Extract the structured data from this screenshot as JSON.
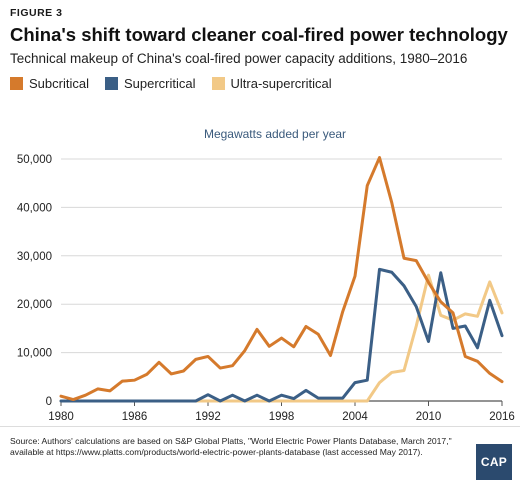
{
  "figure_label": "FIGURE 3",
  "title": "China's shift toward cleaner coal-fired power technology",
  "subtitle": "Technical makeup of China's coal-fired power capacity additions, 1980–2016",
  "unit_label": "Megawatts added per year",
  "source": "Source: Authors' calculations are based on S&P Global Platts, \"World Electric Power Plants Database, March 2017,\" available at https://www.platts.com/products/world-electric-power-plants-database (last accessed May 2017).",
  "logo_text": "CAP",
  "colors": {
    "subcritical": "#d57a2c",
    "supercritical": "#3b5f86",
    "ultra_supercritical": "#f2c987",
    "grid": "#d8d8d8",
    "axis": "#555555"
  },
  "chart_data": {
    "type": "line",
    "title": "China's shift toward cleaner coal-fired power technology",
    "subtitle": "Technical makeup of China's coal-fired power capacity additions, 1980–2016",
    "ylabel": "Megawatts added per year",
    "xlabel": "",
    "xlim": [
      1980,
      2016
    ],
    "ylim": [
      0,
      50000
    ],
    "x_ticks": [
      1980,
      1986,
      1992,
      1998,
      2004,
      2010,
      2016
    ],
    "y_ticks": [
      0,
      10000,
      20000,
      30000,
      40000,
      50000
    ],
    "y_tick_labels": [
      "0",
      "10,000",
      "20,000",
      "30,000",
      "40,000",
      "50,000"
    ],
    "grid": true,
    "legend_position": "top-left",
    "x": [
      1980,
      1981,
      1982,
      1983,
      1984,
      1985,
      1986,
      1987,
      1988,
      1989,
      1990,
      1991,
      1992,
      1993,
      1994,
      1995,
      1996,
      1997,
      1998,
      1999,
      2000,
      2001,
      2002,
      2003,
      2004,
      2005,
      2006,
      2007,
      2008,
      2009,
      2010,
      2011,
      2012,
      2013,
      2014,
      2015,
      2016
    ],
    "series": [
      {
        "name": "Subcritical",
        "color": "#d57a2c",
        "values": [
          1000,
          300,
          1200,
          2500,
          2100,
          4100,
          4300,
          5500,
          8000,
          5600,
          6200,
          8600,
          9200,
          6800,
          7300,
          10400,
          14800,
          11300,
          13000,
          11200,
          15400,
          13800,
          9400,
          18500,
          25800,
          44500,
          50300,
          41000,
          29500,
          29000,
          24500,
          20500,
          18200,
          9200,
          8200,
          5700,
          4000
        ]
      },
      {
        "name": "Supercritical",
        "color": "#3b5f86",
        "values": [
          0,
          0,
          0,
          0,
          0,
          0,
          0,
          0,
          0,
          0,
          0,
          0,
          1300,
          0,
          1200,
          0,
          1200,
          0,
          1200,
          500,
          2200,
          600,
          600,
          600,
          3800,
          4300,
          27200,
          26600,
          23800,
          19500,
          12300,
          26500,
          15000,
          15500,
          11000,
          20800,
          13500
        ]
      },
      {
        "name": "Ultra-supercritical",
        "color": "#f2c987",
        "values": [
          0,
          0,
          0,
          0,
          0,
          0,
          0,
          0,
          0,
          0,
          0,
          0,
          0,
          0,
          0,
          0,
          0,
          0,
          0,
          0,
          0,
          0,
          0,
          0,
          0,
          0,
          3800,
          5900,
          6300,
          15500,
          26000,
          17700,
          16700,
          18000,
          17500,
          24600,
          18200
        ]
      }
    ]
  }
}
